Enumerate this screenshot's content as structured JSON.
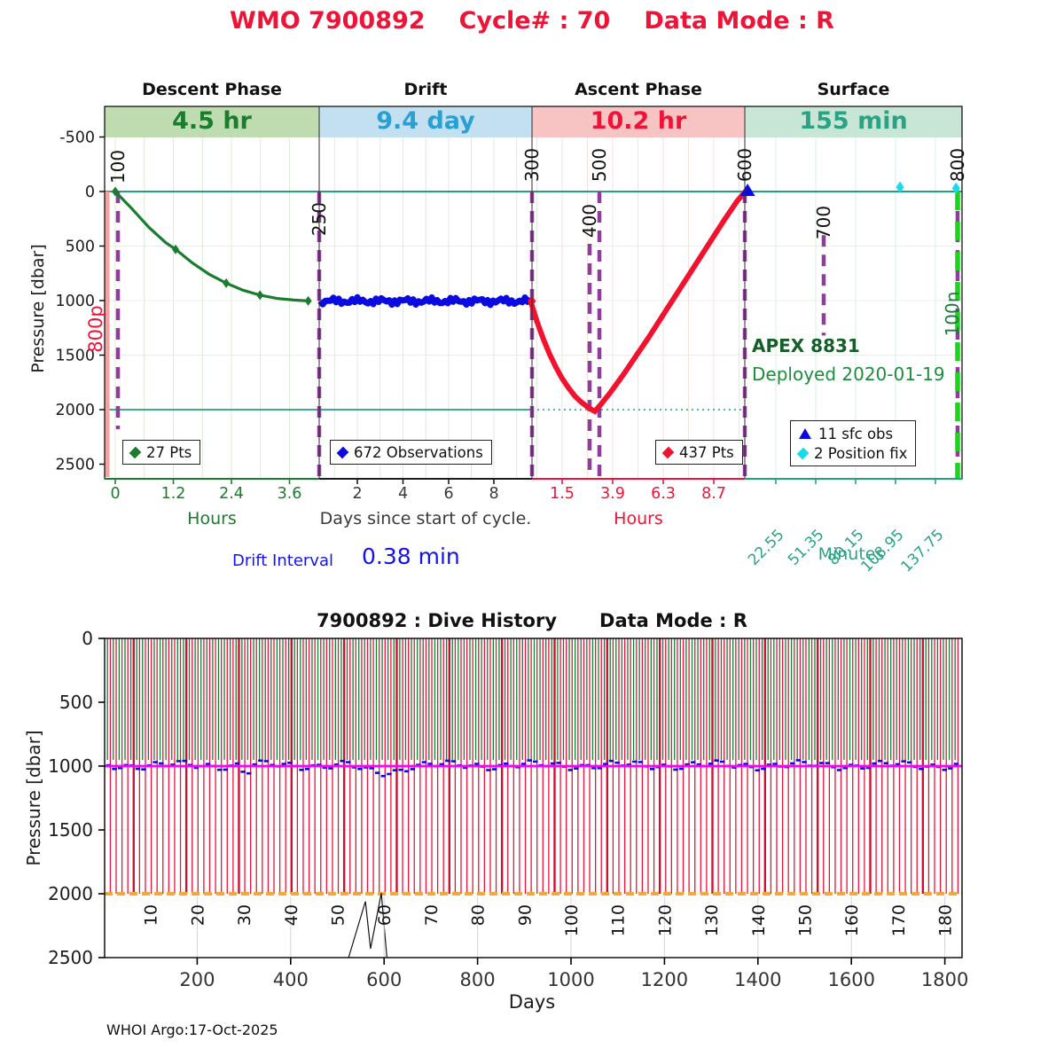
{
  "page": {
    "title_parts": [
      "WMO 7900892",
      "Cycle# : 70",
      "Data Mode : R"
    ],
    "footer": "WHOI Argo:17-Oct-2025"
  },
  "chart_data": [
    {
      "type": "line",
      "id": "cycle-timing",
      "title": "WMO 7900892   Cycle# : 70   Data Mode : R",
      "ylabel": "Pressure [dbar]",
      "ylim": [
        -500,
        2500
      ],
      "yticks": [
        -500,
        0,
        500,
        1000,
        1500,
        2000,
        2500
      ],
      "grid": true,
      "phases": [
        {
          "label": "Descent Phase",
          "duration": "4.5 hr",
          "axis_name": "Hours",
          "ticks": [
            "0",
            "1.2",
            "2.4",
            "3.6"
          ],
          "fg": "#1a7d2e",
          "bg": "#bedcb0",
          "name_color": "#1a7d2e",
          "axis_color": "#1a7d2e",
          "grid_color": "#dcecd2"
        },
        {
          "label": "Drift",
          "duration": "9.4 day",
          "axis_name": "Days since start of cycle.",
          "ticks": [
            "2",
            "4",
            "6",
            "8"
          ],
          "fg": "#2a9fd4",
          "bg": "#c2e0ef",
          "name_color": "#3a3a3a",
          "axis_color": "#1c1c1c",
          "grid_color": "#e4e4e4"
        },
        {
          "label": "Ascent Phase",
          "duration": "10.2 hr",
          "axis_name": "Hours",
          "ticks": [
            "1.5",
            "3.9",
            "6.3",
            "8.7"
          ],
          "fg": "#ee1438",
          "bg": "#f7c3c3",
          "name_color": "#ee1438",
          "axis_color": "#e8143c",
          "grid_color": "#fae0de"
        },
        {
          "label": "Surface",
          "duration": "155 min",
          "axis_name": "Minutes",
          "ticks": [
            "22.55",
            "51.35",
            "80.15",
            "108.95",
            "137.75"
          ],
          "rotated_ticks": true,
          "fg": "#2aa385",
          "bg": "#c8e6d6",
          "name_color": "#2aa385",
          "axis_color": "#1fa37c",
          "grid_color": "#d8ece4"
        }
      ],
      "events": [
        {
          "label": "100",
          "x": 133,
          "p1": 0,
          "p2": 2180,
          "label_cy": 188
        },
        {
          "label": "250",
          "x": 360,
          "p1": 0,
          "p2": 2630,
          "label_cy": 247
        },
        {
          "label": "300",
          "x": 600,
          "p1": 0,
          "p2": 2630,
          "label_cy": 186
        },
        {
          "label": "400",
          "x": 665,
          "p1": 480,
          "p2": 2630,
          "label_cy": 249
        },
        {
          "label": "500",
          "x": 676,
          "p1": 0,
          "p2": 2630,
          "label_cy": 186
        },
        {
          "label": "600",
          "x": 840,
          "p1": 0,
          "p2": 2620,
          "label_cy": 186
        },
        {
          "label": "700",
          "x": 929,
          "p1": 400,
          "p2": 1320,
          "label_cy": 251
        },
        {
          "label": "800",
          "x": 1080,
          "p1": 0,
          "p2": 2630,
          "label_cy": 186
        }
      ],
      "event_line_color": "#8e3d99",
      "prev_cycle_line": {
        "label": "800p",
        "x": 121,
        "color": "#f9a3a0",
        "label_color": "#ee1438"
      },
      "next_cycle_line": {
        "label": "100n",
        "x": 1080,
        "color": "#1bd41b",
        "label_color": "#1c7c3e"
      },
      "ref_line_color": "#1fa37c",
      "ref_lines_dbar": {
        "surface": 0,
        "profile_target": 2000
      },
      "series": {
        "descent": {
          "name": "27 Pts",
          "color": "#1a7d2e",
          "hours": [
            0,
            0.35,
            0.7,
            1.05,
            1.25,
            1.6,
            1.95,
            2.3,
            2.65,
            3.0,
            3.35,
            3.7,
            4.0
          ],
          "pressure": [
            0,
            160,
            330,
            470,
            530,
            655,
            760,
            840,
            905,
            950,
            980,
            995,
            1003
          ],
          "marker_idx": [
            0,
            4,
            7,
            9,
            12
          ]
        },
        "drift": {
          "name": "672 Observations",
          "color": "#0b0be0",
          "park_dbar": 1005,
          "day_start": 0.15,
          "day_end": 9.65
        },
        "ascent": {
          "name": "437 Pts",
          "color": "#f2122e",
          "hours": [
            0,
            0.3,
            0.6,
            0.9,
            1.2,
            1.5,
            1.8,
            2.1,
            2.4,
            2.7,
            2.95,
            3.05,
            3.3,
            3.8,
            4.4,
            5.0,
            5.6,
            6.2,
            6.8,
            7.4,
            8.0,
            8.6,
            9.2,
            9.8,
            10.2
          ],
          "pressure": [
            1005,
            1190,
            1350,
            1490,
            1610,
            1715,
            1800,
            1875,
            1930,
            1975,
            2005,
            2015,
            1960,
            1840,
            1680,
            1510,
            1340,
            1160,
            980,
            800,
            620,
            440,
            260,
            90,
            0
          ]
        },
        "surface_obs": {
          "name": "11 sfc obs",
          "color": "#0b0be0",
          "minutes": [
            2
          ],
          "pressure": [
            0
          ]
        },
        "position_fixes": {
          "name": "2 Position fix",
          "color": "#16dbe8",
          "minutes": [
            112,
            152.5
          ],
          "pressure": [
            -40,
            -30
          ]
        }
      },
      "annotations": {
        "float_id": "APEX 8831",
        "deployed": "Deployed 2020-01-19",
        "drift_interval_label": "Drift Interval",
        "drift_interval_value": "0.38 min"
      }
    },
    {
      "type": "line",
      "id": "dive-history",
      "title_left": "7900892 : Dive History",
      "title_right": "Data Mode : R",
      "xlabel": "Days",
      "ylabel": "Pressure [dbar]",
      "xlim": [
        0,
        1835
      ],
      "ylim": [
        0,
        2500
      ],
      "xticks": [
        200,
        400,
        600,
        800,
        1000,
        1200,
        1400,
        1600,
        1800
      ],
      "yticks": [
        0,
        500,
        1000,
        1500,
        2000,
        2500
      ],
      "cycle_tick_labels": [
        10,
        20,
        30,
        40,
        50,
        60,
        70,
        80,
        90,
        100,
        110,
        120,
        130,
        140,
        150,
        160,
        170,
        180
      ],
      "days_per_cycle": 10,
      "dive_series": {
        "count": 146,
        "first_day": 8,
        "last_day": 1822,
        "descent_color": "#1d7a33",
        "descent_depth_dbar": 1000,
        "profile_color": "#e8143c",
        "profile_emphasis_color": "#cc1133",
        "profile_depth_dbar": 2000,
        "emphasis_every": 9
      },
      "park_line": {
        "color": "#ff00ff",
        "dbar": 1000
      },
      "park_obs_color": "#0b0be0",
      "bottom_line": {
        "color": "#f5a73b",
        "dbar": 2000
      },
      "anomaly": {
        "color": "#111111",
        "days": [
          524,
          560,
          571,
          594,
          606
        ],
        "pressure": [
          2500,
          2060,
          2430,
          1995,
          2500
        ]
      }
    }
  ]
}
